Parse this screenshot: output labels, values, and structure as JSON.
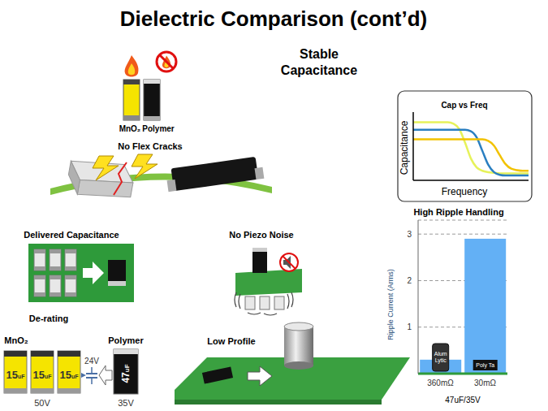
{
  "title": "Dielectric Comparison (cont’d)",
  "headline": "Stable Capacitance",
  "flammability": {
    "labels": [
      "MnO₂",
      "Polymer"
    ]
  },
  "flex": {
    "label": "No Flex Cracks"
  },
  "delivered": {
    "label": "Delivered Capacitance"
  },
  "piezo": {
    "label": "No Piezo Noise"
  },
  "derating": {
    "label": "De-rating",
    "left_label": "MnO₂",
    "right_label": "Polymer",
    "mno2_caps": [
      "15uF",
      "15uF",
      "15uF"
    ],
    "mno2_voltage": "50V",
    "circuit_voltage": "24V",
    "polymer_cap": "47uF",
    "polymer_voltage": "35V"
  },
  "profile": {
    "label": "Low Profile"
  },
  "chart_data": [
    {
      "type": "line",
      "title": "Cap vs Freq",
      "x_label": "Frequency",
      "y_label": "Capacitance",
      "tick_labels": false,
      "xlim": [
        0,
        10
      ],
      "ylim": [
        0,
        10
      ],
      "x": [
        0,
        0.5,
        1,
        1.5,
        2,
        2.5,
        3,
        3.5,
        4,
        4.5,
        5,
        5.5,
        6,
        6.5,
        7,
        7.5,
        8,
        8.5,
        9,
        9.5,
        10
      ],
      "series": [
        {
          "color": "#e6f25a",
          "values": [
            8.5,
            8.5,
            8.5,
            8.5,
            8.5,
            8.5,
            8.5,
            8.3,
            7.5,
            5.5,
            3.2,
            1.9,
            1.4,
            1.2,
            1.1,
            1.0,
            1.0,
            1.0,
            1.0,
            1.0,
            1.0
          ]
        },
        {
          "color": "#2a7fc1",
          "values": [
            7.4,
            7.4,
            7.4,
            7.4,
            7.4,
            7.4,
            7.4,
            7.4,
            7.4,
            7.4,
            7.2,
            6.3,
            4.3,
            2.3,
            1.2,
            0.8,
            0.7,
            0.7,
            0.7,
            0.7,
            0.7
          ]
        },
        {
          "color": "#f2c200",
          "values": [
            6.0,
            6.0,
            6.0,
            6.0,
            6.0,
            6.0,
            6.0,
            6.0,
            6.0,
            6.0,
            6.0,
            6.0,
            6.0,
            5.8,
            5.1,
            3.7,
            2.4,
            1.7,
            1.5,
            1.4,
            1.4
          ]
        }
      ]
    },
    {
      "type": "bar",
      "title": "High Ripple Handling",
      "y_label": "Ripple Current (Arms)",
      "x_label": "47uF/35V",
      "categories": [
        "360mΩ",
        "30mΩ"
      ],
      "values": [
        0.3,
        2.9
      ],
      "colors": [
        "#63b0f5",
        "#63b0f5"
      ],
      "annotations": [
        "Alum Lytic",
        "Poly Ta"
      ],
      "ylim": [
        0,
        3.3
      ],
      "yticks": [
        1,
        2,
        3
      ],
      "grid": true
    }
  ]
}
